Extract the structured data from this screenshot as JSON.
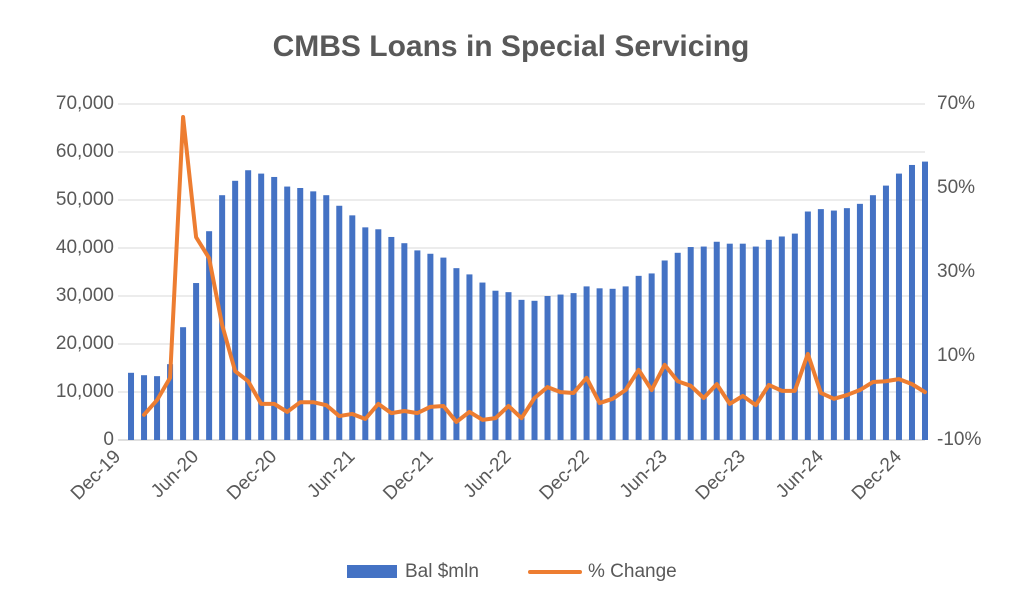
{
  "chart_data": {
    "type": "bar",
    "title": "CMBS Loans in Special Servicing",
    "categories": [
      "Dec-19",
      null,
      null,
      null,
      null,
      null,
      "Jun-20",
      null,
      null,
      null,
      null,
      null,
      "Dec-20",
      null,
      null,
      null,
      null,
      null,
      "Jun-21",
      null,
      null,
      null,
      null,
      null,
      "Dec-21",
      null,
      null,
      null,
      null,
      null,
      "Jun-22",
      null,
      null,
      null,
      null,
      null,
      "Dec-22",
      null,
      null,
      null,
      null,
      null,
      "Jun-23",
      null,
      null,
      null,
      null,
      null,
      "Dec-23",
      null,
      null,
      null,
      null,
      null,
      "Jun-24",
      null,
      null,
      null,
      null,
      null,
      "Dec-24",
      null,
      null
    ],
    "series": [
      {
        "name": "Bal $mln",
        "type": "bar",
        "color": "#4472c4",
        "values": [
          null,
          14000,
          13500,
          13300,
          15800,
          23500,
          32700,
          43500,
          51000,
          54000,
          56200,
          55500,
          54800,
          52800,
          52500,
          51800,
          51000,
          48800,
          46800,
          44300,
          43900,
          42300,
          41000,
          39500,
          38800,
          38000,
          35800,
          34500,
          32800,
          31100,
          30800,
          29200,
          29000,
          30000,
          30300,
          30600,
          32000,
          31600,
          31500,
          32000,
          34200,
          34700,
          37400,
          39000,
          40200,
          40300,
          41300,
          40900,
          40900,
          40300,
          41700,
          42400,
          43000,
          47600,
          48100,
          47800,
          48300,
          49200,
          51000,
          53000,
          55500,
          57300,
          58000
        ]
      },
      {
        "name": "% Change",
        "type": "line",
        "axis": "y2",
        "color": "#ed7d31",
        "values": [
          null,
          null,
          -4,
          -0.5,
          4.8,
          66.9,
          38.3,
          33.3,
          17.4,
          6.4,
          4,
          -1.4,
          -1.4,
          -3.3,
          -1,
          -1,
          -1.7,
          -4.3,
          -3.8,
          -5,
          -1.4,
          -3.6,
          -3.1,
          -3.6,
          -2.1,
          -1.9,
          -5.7,
          -3.3,
          -5.2,
          -4.8,
          -1.9,
          -4.8,
          0,
          2.6,
          1.4,
          1.2,
          4.8,
          -1.2,
          -0.2,
          1.9,
          6.7,
          1.9,
          7.9,
          4,
          2.9,
          0,
          3.3,
          -1.4,
          0.5,
          -1.7,
          3.1,
          1.7,
          1.7,
          10.5,
          1.2,
          -0.2,
          0.7,
          1.9,
          3.8,
          4,
          4.5,
          3.3,
          1.4
        ]
      }
    ],
    "ylim": [
      0,
      70000
    ],
    "yticks": [
      0,
      {
        "value": 10000,
        "label": "10,000"
      },
      {
        "value": 20000,
        "label": "20,000"
      },
      {
        "value": 30000,
        "label": "30,000"
      },
      {
        "value": 40000,
        "label": "40,000"
      },
      {
        "value": 50000,
        "label": "50,000"
      },
      {
        "value": 60000,
        "label": "60,000"
      },
      {
        "value": 70000,
        "label": "70,000"
      }
    ],
    "y2lim": [
      -10,
      70
    ],
    "y2ticks": [
      {
        "value": -10,
        "label": "-10%"
      },
      {
        "value": 10,
        "label": "10%"
      },
      {
        "value": 30,
        "label": "30%"
      },
      {
        "value": 50,
        "label": "50%"
      },
      {
        "value": 70,
        "label": "70%"
      }
    ],
    "grid": true,
    "legend": "bottom"
  }
}
